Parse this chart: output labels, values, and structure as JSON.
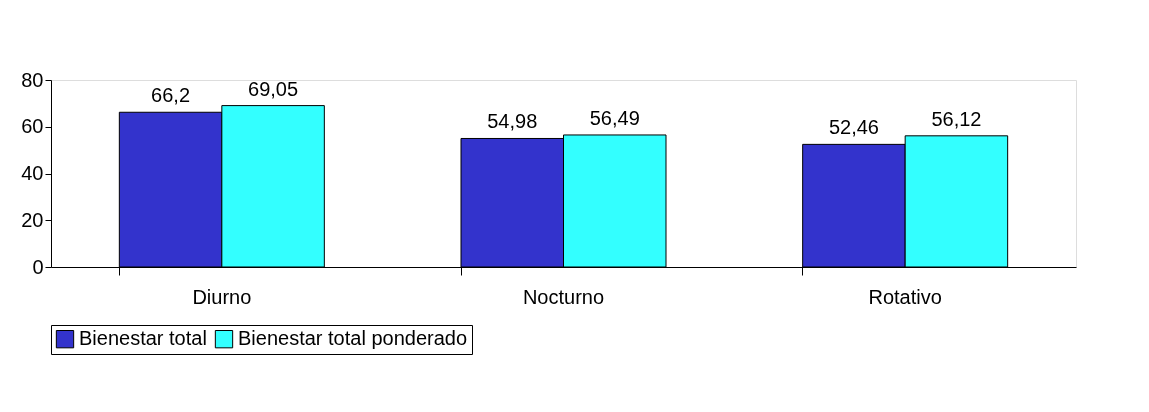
{
  "chart_data": {
    "type": "bar",
    "categories": [
      "Diurno",
      "Nocturno",
      "Rotativo"
    ],
    "series": [
      {
        "name": "Bienestar total",
        "color": "#3333cc",
        "values": [
          66.2,
          54.98,
          52.46
        ],
        "value_labels": [
          "66,2",
          "54,98",
          "52,46"
        ]
      },
      {
        "name": "Bienestar total ponderado",
        "color": "#33ffff",
        "values": [
          69.05,
          56.49,
          56.12
        ],
        "value_labels": [
          "69,05",
          "56,49",
          "56,12"
        ]
      }
    ],
    "ylim": [
      0,
      80
    ],
    "yticks": [
      0,
      20,
      40,
      60,
      80
    ],
    "grid": false,
    "legend": "bottom"
  }
}
